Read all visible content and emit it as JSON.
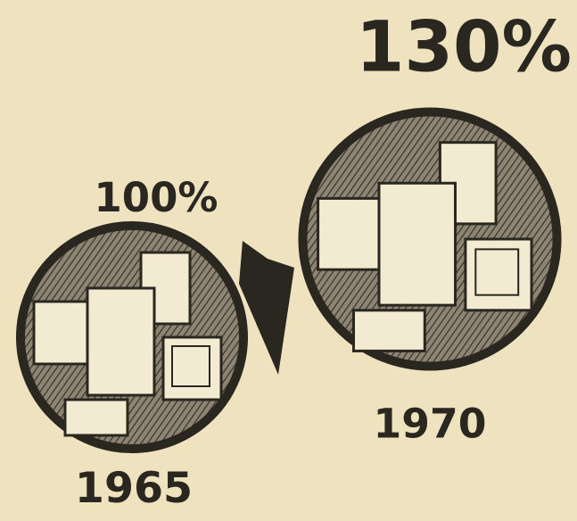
{
  "chart_data": {
    "type": "pictorial",
    "categories": [
      "1965",
      "1970"
    ],
    "values": [
      100,
      130
    ],
    "value_labels": [
      "100%",
      "130%"
    ],
    "color": "#2a2620"
  }
}
